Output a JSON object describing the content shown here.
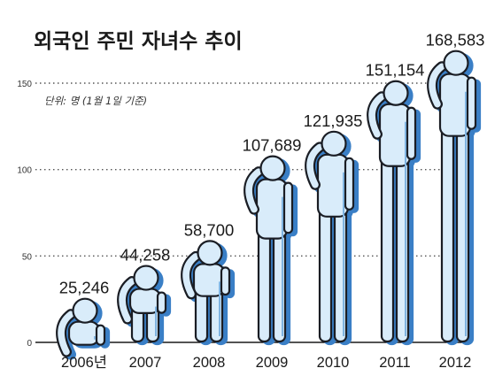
{
  "chart_data": {
    "type": "bar",
    "title": "외국인 주민 자녀수 추이",
    "unit_note": "단위: 명 (1월 1일 기준)",
    "categories": [
      "2006년",
      "2007",
      "2008",
      "2009",
      "2010",
      "2011",
      "2012"
    ],
    "values": [
      25246,
      44258,
      58700,
      107689,
      121935,
      151154,
      168583
    ],
    "value_labels": [
      "25,246",
      "44,258",
      "58,700",
      "107,689",
      "121,935",
      "151,154",
      "168,583"
    ],
    "y_ticks": [
      "0",
      "50",
      "100",
      "150"
    ],
    "y_tick_values": [
      0,
      50000,
      100000,
      150000
    ],
    "ylim": [
      0,
      150000
    ],
    "grid": true,
    "colors": {
      "figure_fill": "#d9ecfa",
      "figure_outline": "#1a1d24",
      "figure_edge": "#7fb3e0",
      "shadow": "#3a7fc6"
    },
    "mark_shape": "person-icon"
  }
}
